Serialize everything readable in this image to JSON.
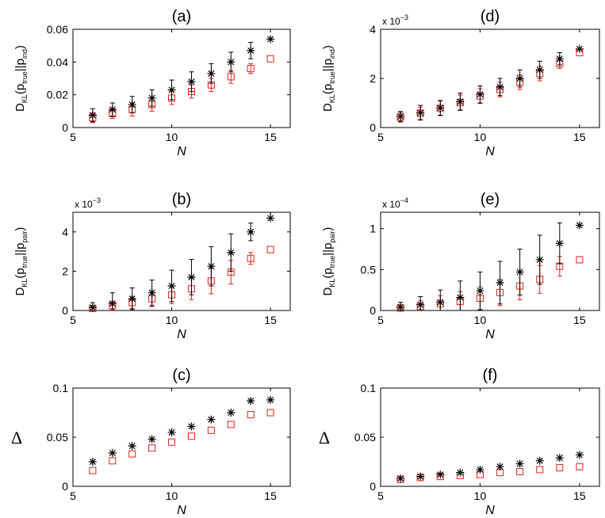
{
  "chart_data": [
    {
      "id": "a",
      "type": "scatter",
      "title": "(a)",
      "xlabel": "N",
      "ylabel": {
        "main": "D",
        "sub": "KL",
        "open": "(p",
        "sub1": "true",
        "mid": "||p",
        "sub2": "ind",
        "close": ")"
      },
      "xlim": [
        5,
        16
      ],
      "ylim": [
        0,
        0.06
      ],
      "xticks": [
        5,
        10,
        15
      ],
      "xtick_labels": [
        "5",
        "10",
        "15"
      ],
      "yticks": [
        0,
        0.02,
        0.04,
        0.06
      ],
      "ytick_labels": [
        "0",
        "0.02",
        "0.04",
        "0.06"
      ],
      "exponent_label": null,
      "x": [
        6,
        7,
        8,
        9,
        10,
        11,
        12,
        13,
        14,
        15
      ],
      "series": [
        {
          "name": "star",
          "marker": "asterisk",
          "color": "#000000",
          "values": [
            0.0075,
            0.011,
            0.014,
            0.018,
            0.023,
            0.028,
            0.033,
            0.04,
            0.047,
            0.054
          ],
          "errors": [
            0.004,
            0.004,
            0.005,
            0.005,
            0.006,
            0.006,
            0.006,
            0.006,
            0.005,
            0
          ]
        },
        {
          "name": "square",
          "marker": "square",
          "color": "#e8211f",
          "values": [
            0.006,
            0.0085,
            0.011,
            0.014,
            0.018,
            0.022,
            0.026,
            0.031,
            0.036,
            0.042
          ],
          "errors": [
            0.003,
            0.003,
            0.004,
            0.004,
            0.004,
            0.004,
            0.004,
            0.004,
            0.003,
            0
          ]
        }
      ]
    },
    {
      "id": "d",
      "type": "scatter",
      "title": "(d)",
      "xlabel": "N",
      "ylabel": {
        "main": "D",
        "sub": "KL",
        "open": "(p",
        "sub1": "true",
        "mid": "||p",
        "sub2": "ind",
        "close": ")"
      },
      "xlim": [
        5,
        16
      ],
      "ylim": [
        0,
        4
      ],
      "xticks": [
        5,
        10,
        15
      ],
      "xtick_labels": [
        "5",
        "10",
        "15"
      ],
      "yticks": [
        0,
        2,
        4
      ],
      "ytick_labels": [
        "0",
        "2",
        "4"
      ],
      "exponent_label": {
        "base": "x 10",
        "power": "−3"
      },
      "x": [
        6,
        7,
        8,
        9,
        10,
        11,
        12,
        13,
        14,
        15
      ],
      "series": [
        {
          "name": "star",
          "marker": "asterisk",
          "color": "#000000",
          "values": [
            0.45,
            0.6,
            0.8,
            1.05,
            1.35,
            1.65,
            2.0,
            2.35,
            2.8,
            3.2
          ],
          "errors": [
            0.2,
            0.3,
            0.3,
            0.35,
            0.35,
            0.35,
            0.35,
            0.35,
            0.25,
            0
          ]
        },
        {
          "name": "square",
          "marker": "square",
          "color": "#e8211f",
          "values": [
            0.42,
            0.58,
            0.78,
            1.02,
            1.28,
            1.55,
            1.85,
            2.2,
            2.6,
            3.05
          ],
          "errors": [
            0.2,
            0.25,
            0.3,
            0.3,
            0.3,
            0.3,
            0.3,
            0.3,
            0.2,
            0
          ]
        }
      ]
    },
    {
      "id": "b",
      "type": "scatter",
      "title": "(b)",
      "xlabel": "N",
      "ylabel": {
        "main": "D",
        "sub": "KL",
        "open": "(p",
        "sub1": "true",
        "mid": "||p",
        "sub2": "pair",
        "close": ")"
      },
      "xlim": [
        5,
        16
      ],
      "ylim": [
        0,
        5
      ],
      "xticks": [
        5,
        10,
        15
      ],
      "xtick_labels": [
        "5",
        "10",
        "15"
      ],
      "yticks": [
        0,
        2,
        4
      ],
      "ytick_labels": [
        "0",
        "2",
        "4"
      ],
      "exponent_label": {
        "base": "x 10",
        "power": "−3"
      },
      "x": [
        6,
        7,
        8,
        9,
        10,
        11,
        12,
        13,
        14,
        15
      ],
      "series": [
        {
          "name": "star",
          "marker": "asterisk",
          "color": "#000000",
          "values": [
            0.15,
            0.35,
            0.6,
            0.9,
            1.25,
            1.7,
            2.25,
            2.95,
            4.0,
            4.7
          ],
          "errors": [
            0.25,
            0.55,
            0.55,
            0.65,
            0.8,
            0.9,
            1.0,
            0.95,
            0.45,
            0
          ]
        },
        {
          "name": "square",
          "marker": "square",
          "color": "#e8211f",
          "values": [
            0.1,
            0.25,
            0.4,
            0.6,
            0.8,
            1.1,
            1.5,
            1.95,
            2.65,
            3.1
          ],
          "errors": [
            0.1,
            0.2,
            0.3,
            0.4,
            0.45,
            0.55,
            0.65,
            0.6,
            0.3,
            0
          ]
        }
      ]
    },
    {
      "id": "e",
      "type": "scatter",
      "title": "(e)",
      "xlabel": "N",
      "ylabel": {
        "main": "D",
        "sub": "KL",
        "open": "(p",
        "sub1": "true",
        "mid": "||p",
        "sub2": "pair",
        "close": ")"
      },
      "xlim": [
        5,
        16
      ],
      "ylim": [
        0,
        1.2
      ],
      "xticks": [
        5,
        10,
        15
      ],
      "xtick_labels": [
        "5",
        "10",
        "15"
      ],
      "yticks": [
        0,
        0.5,
        1
      ],
      "ytick_labels": [
        "0",
        "0.5",
        "1"
      ],
      "exponent_label": {
        "base": "x 10",
        "power": "−4"
      },
      "x": [
        6,
        7,
        8,
        9,
        10,
        11,
        12,
        13,
        14,
        15
      ],
      "series": [
        {
          "name": "star",
          "marker": "asterisk",
          "color": "#000000",
          "values": [
            0.04,
            0.07,
            0.1,
            0.16,
            0.24,
            0.34,
            0.47,
            0.62,
            0.82,
            1.04
          ],
          "errors": [
            0.06,
            0.1,
            0.15,
            0.2,
            0.23,
            0.26,
            0.28,
            0.3,
            0.25,
            0
          ]
        },
        {
          "name": "square",
          "marker": "square",
          "color": "#e8211f",
          "values": [
            0.03,
            0.05,
            0.08,
            0.11,
            0.15,
            0.22,
            0.3,
            0.38,
            0.54,
            0.62
          ],
          "errors": [
            0.04,
            0.07,
            0.1,
            0.12,
            0.14,
            0.16,
            0.17,
            0.17,
            0.12,
            0
          ]
        }
      ]
    },
    {
      "id": "c",
      "type": "scatter",
      "title": "(c)",
      "xlabel": "N",
      "ylabel": {
        "symbol": "Δ"
      },
      "xlim": [
        5,
        16
      ],
      "ylim": [
        0,
        0.1
      ],
      "xticks": [
        5,
        10,
        15
      ],
      "xtick_labels": [
        "5",
        "10",
        "15"
      ],
      "yticks": [
        0,
        0.05,
        0.1
      ],
      "ytick_labels": [
        "0",
        "0.05",
        "0.1"
      ],
      "exponent_label": null,
      "x": [
        6,
        7,
        8,
        9,
        10,
        11,
        12,
        13,
        14,
        15
      ],
      "series": [
        {
          "name": "star",
          "marker": "asterisk",
          "color": "#000000",
          "values": [
            0.025,
            0.034,
            0.041,
            0.048,
            0.055,
            0.061,
            0.068,
            0.075,
            0.087,
            0.088
          ],
          "errors": [
            0,
            0,
            0,
            0,
            0,
            0,
            0,
            0,
            0,
            0
          ]
        },
        {
          "name": "square",
          "marker": "square",
          "color": "#e8211f",
          "values": [
            0.016,
            0.026,
            0.033,
            0.039,
            0.045,
            0.051,
            0.057,
            0.063,
            0.073,
            0.075
          ],
          "errors": [
            0,
            0,
            0,
            0,
            0,
            0,
            0,
            0,
            0,
            0
          ]
        }
      ]
    },
    {
      "id": "f",
      "type": "scatter",
      "title": "(f)",
      "xlabel": "N",
      "ylabel": {
        "symbol": "Δ"
      },
      "xlim": [
        5,
        16
      ],
      "ylim": [
        0,
        0.1
      ],
      "xticks": [
        5,
        10,
        15
      ],
      "xtick_labels": [
        "5",
        "10",
        "15"
      ],
      "yticks": [
        0,
        0.05,
        0.1
      ],
      "ytick_labels": [
        "0",
        "0.05",
        "0.1"
      ],
      "exponent_label": null,
      "x": [
        6,
        7,
        8,
        9,
        10,
        11,
        12,
        13,
        14,
        15
      ],
      "series": [
        {
          "name": "star",
          "marker": "asterisk",
          "color": "#000000",
          "values": [
            0.008,
            0.01,
            0.012,
            0.014,
            0.017,
            0.02,
            0.023,
            0.026,
            0.029,
            0.032
          ],
          "errors": [
            0,
            0,
            0,
            0,
            0,
            0,
            0,
            0,
            0,
            0
          ]
        },
        {
          "name": "square",
          "marker": "square",
          "color": "#e8211f",
          "values": [
            0.007,
            0.009,
            0.01,
            0.011,
            0.012,
            0.014,
            0.015,
            0.017,
            0.019,
            0.02
          ],
          "errors": [
            0,
            0,
            0,
            0,
            0,
            0,
            0,
            0,
            0,
            0
          ]
        }
      ]
    }
  ]
}
